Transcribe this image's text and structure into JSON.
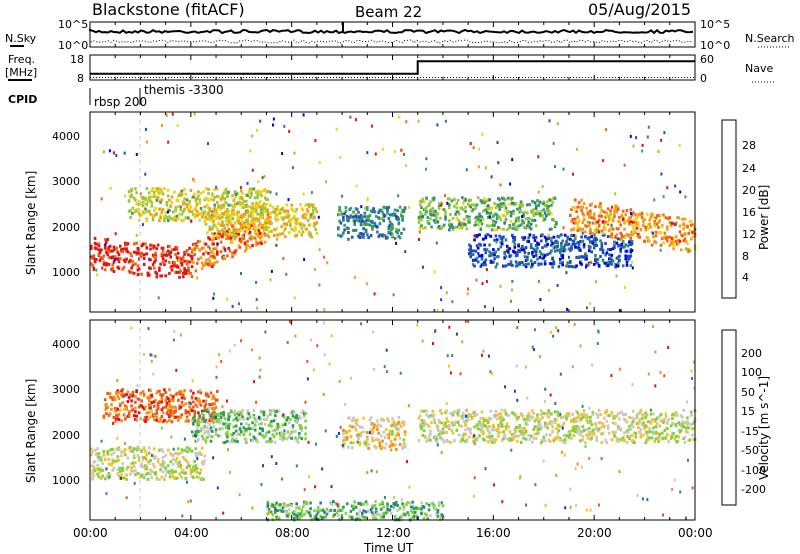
{
  "header": {
    "station": "Blackstone (fitACF)",
    "beam": "Beam 22",
    "date": "05/Aug/2015"
  },
  "top_panels": {
    "nsky_label": "N.Sky",
    "nsky_tick_high": "10^5",
    "nsky_tick_low": "10^0",
    "nsearch_label": "N.Search",
    "freq_label_1": "Freq.",
    "freq_label_2": "[MHz]",
    "freq_ticks": [
      "18",
      "8"
    ],
    "nave_ticks": [
      "60",
      "0"
    ],
    "nave_label": "Nave",
    "cpid_label": "CPID",
    "cpid_entries": [
      {
        "text": "rbsp 200",
        "time_h": 0.05
      },
      {
        "text": "themis -3300",
        "time_h": 2.0
      }
    ],
    "frequency_series": {
      "before_h": 13.0,
      "level_low": 10.5,
      "level_high": 15.5,
      "range": [
        8,
        18
      ]
    },
    "nave_series": {
      "level_low": 6,
      "level_high": 38,
      "range": [
        0,
        60
      ]
    }
  },
  "power_panel": {
    "ylabel": "Slant Range [km]",
    "yticks": [
      "1000",
      "2000",
      "3000",
      "4000"
    ],
    "colorbar_label": "Power [dB]",
    "colorbar_ticks": [
      "28",
      "24",
      "20",
      "16",
      "12",
      "8",
      "4"
    ],
    "colors": [
      "#0000e0",
      "#1e4fb5",
      "#2e7a8f",
      "#3c9e64",
      "#9ac93a",
      "#f0d21a",
      "#f49c16",
      "#f0621a",
      "#e31212"
    ]
  },
  "velocity_panel": {
    "ylabel": "Slant Range [km]",
    "yticks": [
      "1000",
      "2000",
      "3000",
      "4000"
    ],
    "colorbar_label": "Velocity [m s^-1]",
    "colorbar_ticks": [
      "200",
      "100",
      "50",
      "15",
      "-15",
      "-50",
      "-100",
      "-200"
    ],
    "colors": [
      "#1a3cc8",
      "#2a72b0",
      "#2c9a56",
      "#7ed13a",
      "#c8c8c0",
      "#f5c22b",
      "#f0901a",
      "#e8561c",
      "#e01010"
    ]
  },
  "x_axis": {
    "label": "Time UT",
    "ticks": [
      "00:00",
      "04:00",
      "08:00",
      "12:00",
      "16:00",
      "20:00",
      "00:00"
    ],
    "range_hours": [
      0,
      24
    ]
  },
  "chart_data": [
    {
      "type": "heatmap",
      "title": "Power [dB]",
      "xlabel": "Time UT",
      "ylabel": "Slant Range [km]",
      "xlim_hours": [
        0,
        24
      ],
      "ylim_km": [
        180,
        4500
      ],
      "colorbar_range": [
        0,
        32
      ],
      "structures": [
        {
          "t0": 0.0,
          "t1": 4.0,
          "r_center_start": 1450,
          "r_center_end": 1200,
          "value": 30
        },
        {
          "t0": 4.0,
          "t1": 7.0,
          "r_center_start": 1300,
          "r_center_end": 2050,
          "value": 26
        },
        {
          "t0": 1.5,
          "t1": 7.0,
          "r_center": 2500,
          "value": 18
        },
        {
          "t0": 4.5,
          "t1": 9.0,
          "r_center": 2150,
          "value": 20
        },
        {
          "t0": 9.8,
          "t1": 12.5,
          "r_center": 2100,
          "value": 10
        },
        {
          "t0": 13.0,
          "t1": 18.5,
          "r_center": 2300,
          "value": 14
        },
        {
          "t0": 15.0,
          "t1": 21.5,
          "r_center": 1500,
          "value": 6
        },
        {
          "t0": 19.0,
          "t1": 24.0,
          "r_center_start": 2300,
          "r_center_end": 1800,
          "value": 24
        }
      ]
    },
    {
      "type": "heatmap",
      "title": "Velocity [m s^-1]",
      "xlabel": "Time UT",
      "ylabel": "Slant Range [km]",
      "xlim_hours": [
        0,
        24
      ],
      "ylim_km": [
        180,
        4500
      ],
      "colorbar_range": [
        -200,
        200
      ],
      "structures": [
        {
          "t0": 0.0,
          "t1": 4.5,
          "r_center": 1400,
          "value": 0
        },
        {
          "t0": 0.5,
          "t1": 5.0,
          "r_center": 2650,
          "value": 120
        },
        {
          "t0": 4.0,
          "t1": 8.5,
          "r_center": 2200,
          "value": -40
        },
        {
          "t0": 10.0,
          "t1": 12.5,
          "r_center": 2050,
          "value": 30
        },
        {
          "t0": 13.0,
          "t1": 24.0,
          "r_center": 2200,
          "value": 0
        },
        {
          "t0": 7.0,
          "t1": 14.0,
          "r_center": 230,
          "value": -60
        }
      ]
    }
  ]
}
